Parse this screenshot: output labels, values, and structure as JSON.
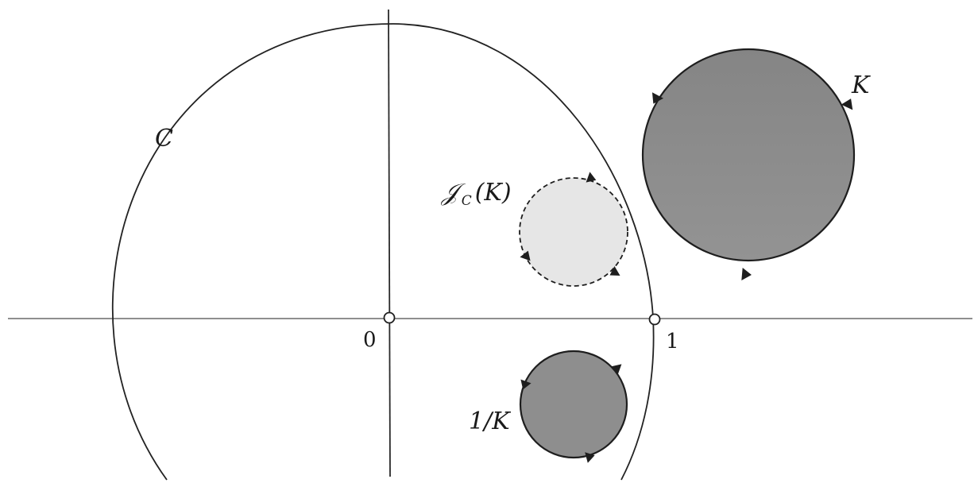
{
  "labels": {
    "contour": "C",
    "region_k": "K",
    "region_inverse": "1/K",
    "region_jc": "𝒥",
    "region_jc_sub": "C",
    "region_jc_arg": "(K)",
    "origin": "0",
    "one": "1"
  },
  "colors": {
    "region_k_fill": "#8c8c8c",
    "region_inverse_fill": "#8e8e8e",
    "region_jc_fill": "#e6e6e6",
    "stroke": "#1e1e1e"
  },
  "icons": {
    "orientation_arrow": "arrowhead-icon"
  }
}
